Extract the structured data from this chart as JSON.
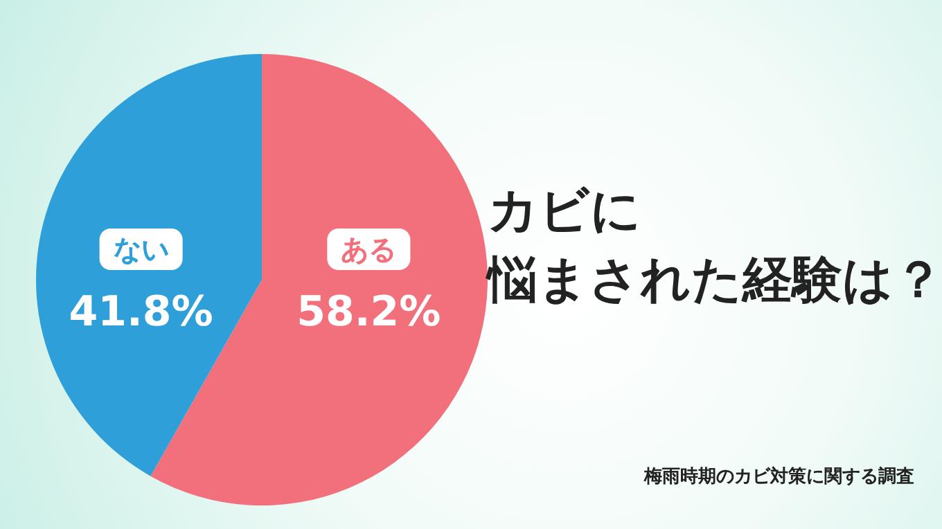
{
  "chart_data": {
    "type": "pie",
    "title": "カビに",
    "subtitle": "悩まされた経験は？",
    "categories": [
      "ある",
      "ない"
    ],
    "values": [
      58.2,
      41.8
    ],
    "value_labels": [
      "58.2%",
      "41.8%"
    ],
    "colors": [
      "#f2707c",
      "#2e9fd8"
    ],
    "annotations": [
      "梅雨時期のカビ対策に関する調査"
    ],
    "legend": false
  }
}
